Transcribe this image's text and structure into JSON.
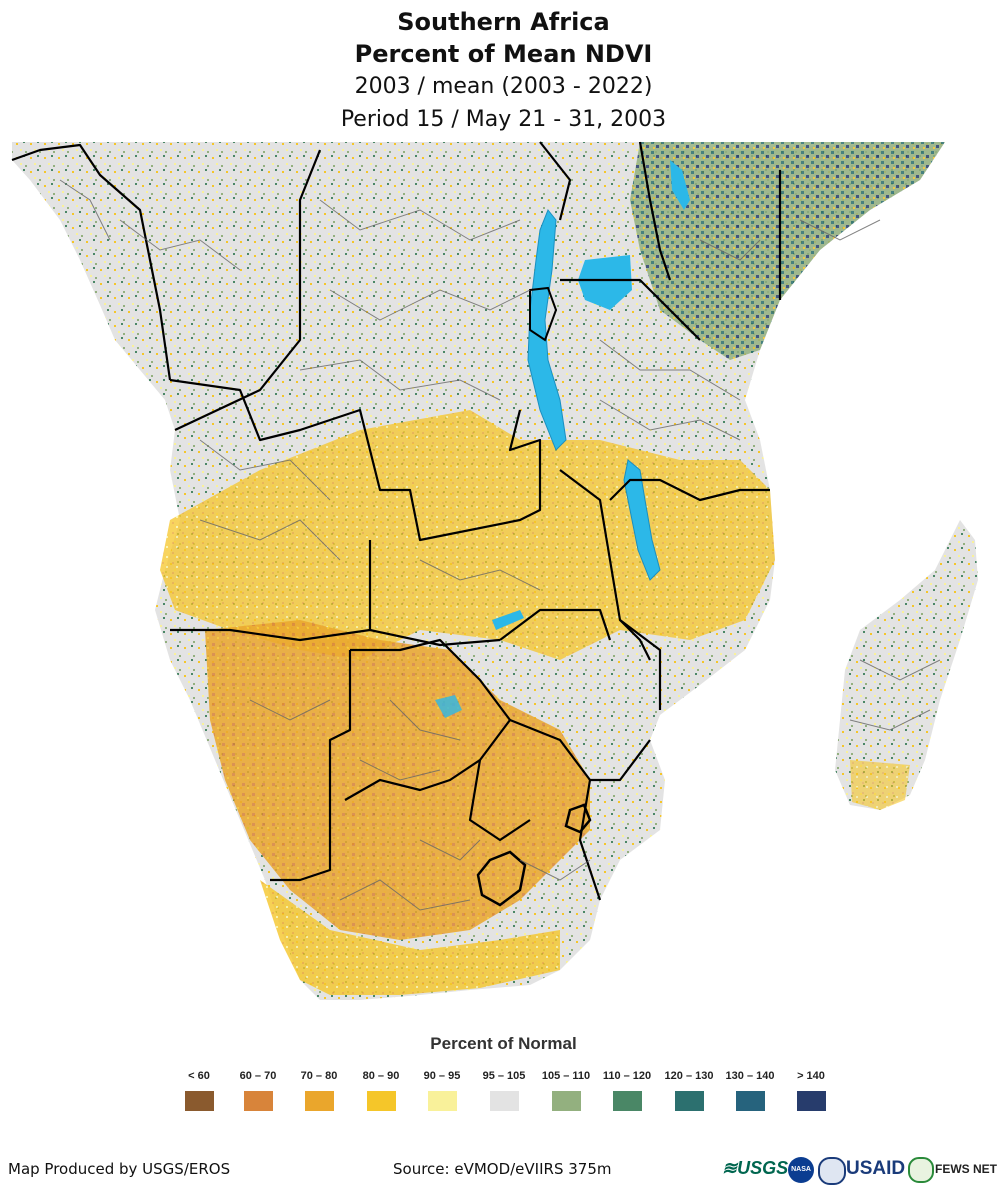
{
  "header": {
    "title": "Southern Africa",
    "subtitle": "Percent of Mean NDVI",
    "line3": "2003 / mean (2003 - 2022)",
    "line4": "Period 15 / May 21 - 31, 2003"
  },
  "legend": {
    "title": "Percent of Normal",
    "items": [
      {
        "label": "< 60",
        "color": "#8a5a2e"
      },
      {
        "label": "60 – 70",
        "color": "#d8843a"
      },
      {
        "label": "70 – 80",
        "color": "#eaa62c"
      },
      {
        "label": "80 – 90",
        "color": "#f5c629"
      },
      {
        "label": "90 – 95",
        "color": "#f9f19a"
      },
      {
        "label": "95 – 105",
        "color": "#e3e3e3"
      },
      {
        "label": "105 – 110",
        "color": "#93b07f"
      },
      {
        "label": "110 – 120",
        "color": "#4a8766"
      },
      {
        "label": "120 – 130",
        "color": "#2c706f"
      },
      {
        "label": "130 – 140",
        "color": "#26637d"
      },
      {
        "label": "> 140",
        "color": "#273c6c"
      }
    ]
  },
  "footer": {
    "produced_by": "Map Produced by USGS/EROS",
    "source": "Source: eVMOD/eVIIRS 375m"
  },
  "logos": {
    "usgs": "USGS",
    "nasa": "NASA",
    "usaid": "USAID",
    "fews": "FEWS NET"
  },
  "colors": {
    "water": "#2cb8e8",
    "border": "#000000",
    "admin": "#666666",
    "ocean": "#ffffff"
  }
}
